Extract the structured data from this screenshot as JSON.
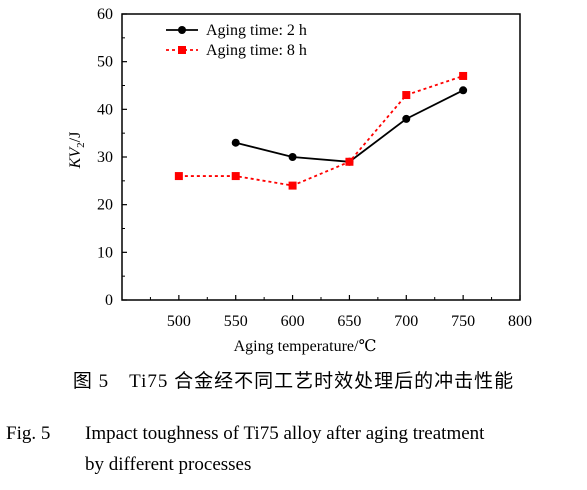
{
  "chart_data": {
    "type": "line",
    "xlabel": "Aging temperature/℃",
    "ylabel_main": "KV",
    "ylabel_sub": "2",
    "ylabel_unit": "/J",
    "xlim": [
      450,
      800
    ],
    "ylim": [
      0,
      60
    ],
    "xticks": [
      500,
      550,
      600,
      650,
      700,
      750,
      800
    ],
    "yticks": [
      0,
      10,
      20,
      30,
      40,
      50,
      60
    ],
    "legend_position": "top-left",
    "grid": false,
    "series": [
      {
        "name": "Aging time: 2 h",
        "color": "#000000",
        "line_style": "solid",
        "marker": "circle",
        "points": [
          [
            550,
            33
          ],
          [
            600,
            30
          ],
          [
            650,
            29
          ],
          [
            700,
            38
          ],
          [
            750,
            44
          ]
        ]
      },
      {
        "name": "Aging time: 8 h",
        "color": "#ff0000",
        "line_style": "dotted",
        "marker": "square",
        "points": [
          [
            500,
            26
          ],
          [
            550,
            26
          ],
          [
            600,
            24
          ],
          [
            650,
            29
          ],
          [
            700,
            43
          ],
          [
            750,
            47
          ]
        ]
      }
    ]
  },
  "caption": {
    "cn": "图 5　Ti75 合金经不同工艺时效处理后的冲击性能",
    "en_label": "Fig. 5",
    "en_line1": "Impact toughness of Ti75 alloy after aging treatment",
    "en_line2": "by different processes"
  }
}
